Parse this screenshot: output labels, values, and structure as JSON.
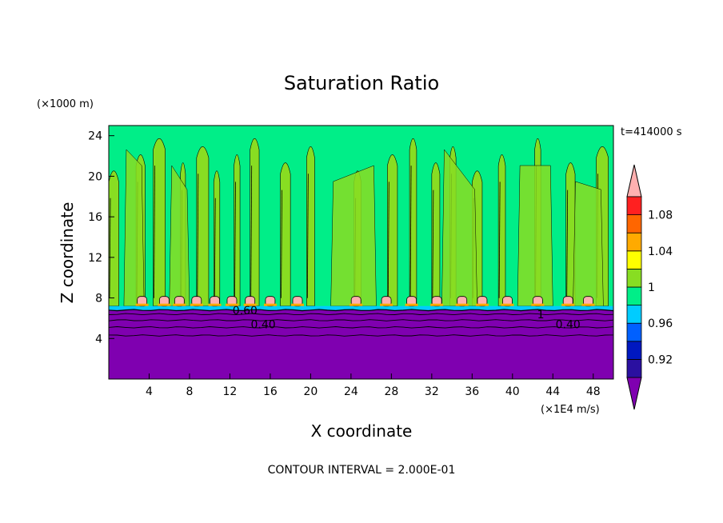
{
  "chart_data": {
    "type": "heatmap",
    "title": "Saturation Ratio",
    "xlabel": "X coordinate",
    "ylabel": "Z coordinate",
    "x_unit": "(×1E4 m/s)",
    "y_unit": "(×1000 m)",
    "time_label": "t=414000 s",
    "footer": "CONTOUR INTERVAL = 2.000E-01",
    "xlim": [
      0,
      50
    ],
    "ylim": [
      0,
      25
    ],
    "x_ticks": [
      "4",
      "8",
      "12",
      "16",
      "20",
      "24",
      "28",
      "32",
      "36",
      "40",
      "44",
      "48"
    ],
    "y_ticks": [
      "4",
      "8",
      "12",
      "16",
      "20",
      "24"
    ],
    "colorbar": {
      "labels": [
        "0.92",
        "0.96",
        "1",
        "1.04",
        "1.08"
      ],
      "levels": [
        0.9,
        0.92,
        0.94,
        0.96,
        0.98,
        1.0,
        1.02,
        1.04,
        1.06,
        1.08,
        1.1
      ],
      "colors": [
        "#7f00b0",
        "#2a10a0",
        "#0018c0",
        "#0060ff",
        "#00ccff",
        "#00ee88",
        "#88dd22",
        "#ffff00",
        "#ffaa00",
        "#ff6600",
        "#ff2020",
        "#ffb0b0"
      ]
    },
    "contour_labels": [
      {
        "x": 13.5,
        "z": 6.8,
        "text": "0.60"
      },
      {
        "x": 15.3,
        "z": 5.4,
        "text": "0.40"
      },
      {
        "x": 45.5,
        "z": 5.4,
        "text": "0.40"
      },
      {
        "x": 42.8,
        "z": 6.4,
        "text": "1"
      }
    ],
    "regions": {
      "dry_layer_top_z": 6.8,
      "moist_layer_bottom_z": 7.2,
      "bulge_xs": [
        3.3,
        5.5,
        7.0,
        8.7,
        10.5,
        12.2,
        14.0,
        16.0,
        18.7,
        24.5,
        27.5,
        30.0,
        32.5,
        35.0,
        37.0,
        39.5,
        42.5,
        45.5,
        47.5
      ],
      "columns": [
        {
          "x": 0.0,
          "w": 1.0
        },
        {
          "x": 2.7,
          "w": 0.9
        },
        {
          "x": 4.4,
          "w": 1.2
        },
        {
          "x": 7.1,
          "w": 0.5
        },
        {
          "x": 8.7,
          "w": 1.2
        },
        {
          "x": 10.4,
          "w": 0.6
        },
        {
          "x": 12.4,
          "w": 0.6
        },
        {
          "x": 14.0,
          "w": 0.9
        },
        {
          "x": 17.0,
          "w": 1.0
        },
        {
          "x": 19.6,
          "w": 0.8
        },
        {
          "x": 24.3,
          "w": 0.7
        },
        {
          "x": 27.6,
          "w": 1.0
        },
        {
          "x": 29.8,
          "w": 0.7
        },
        {
          "x": 32.0,
          "w": 0.8
        },
        {
          "x": 33.8,
          "w": 0.6
        },
        {
          "x": 36.0,
          "w": 1.0
        },
        {
          "x": 38.6,
          "w": 0.7
        },
        {
          "x": 42.2,
          "w": 0.6
        },
        {
          "x": 45.3,
          "w": 0.9
        },
        {
          "x": 48.3,
          "w": 1.2
        }
      ]
    }
  }
}
